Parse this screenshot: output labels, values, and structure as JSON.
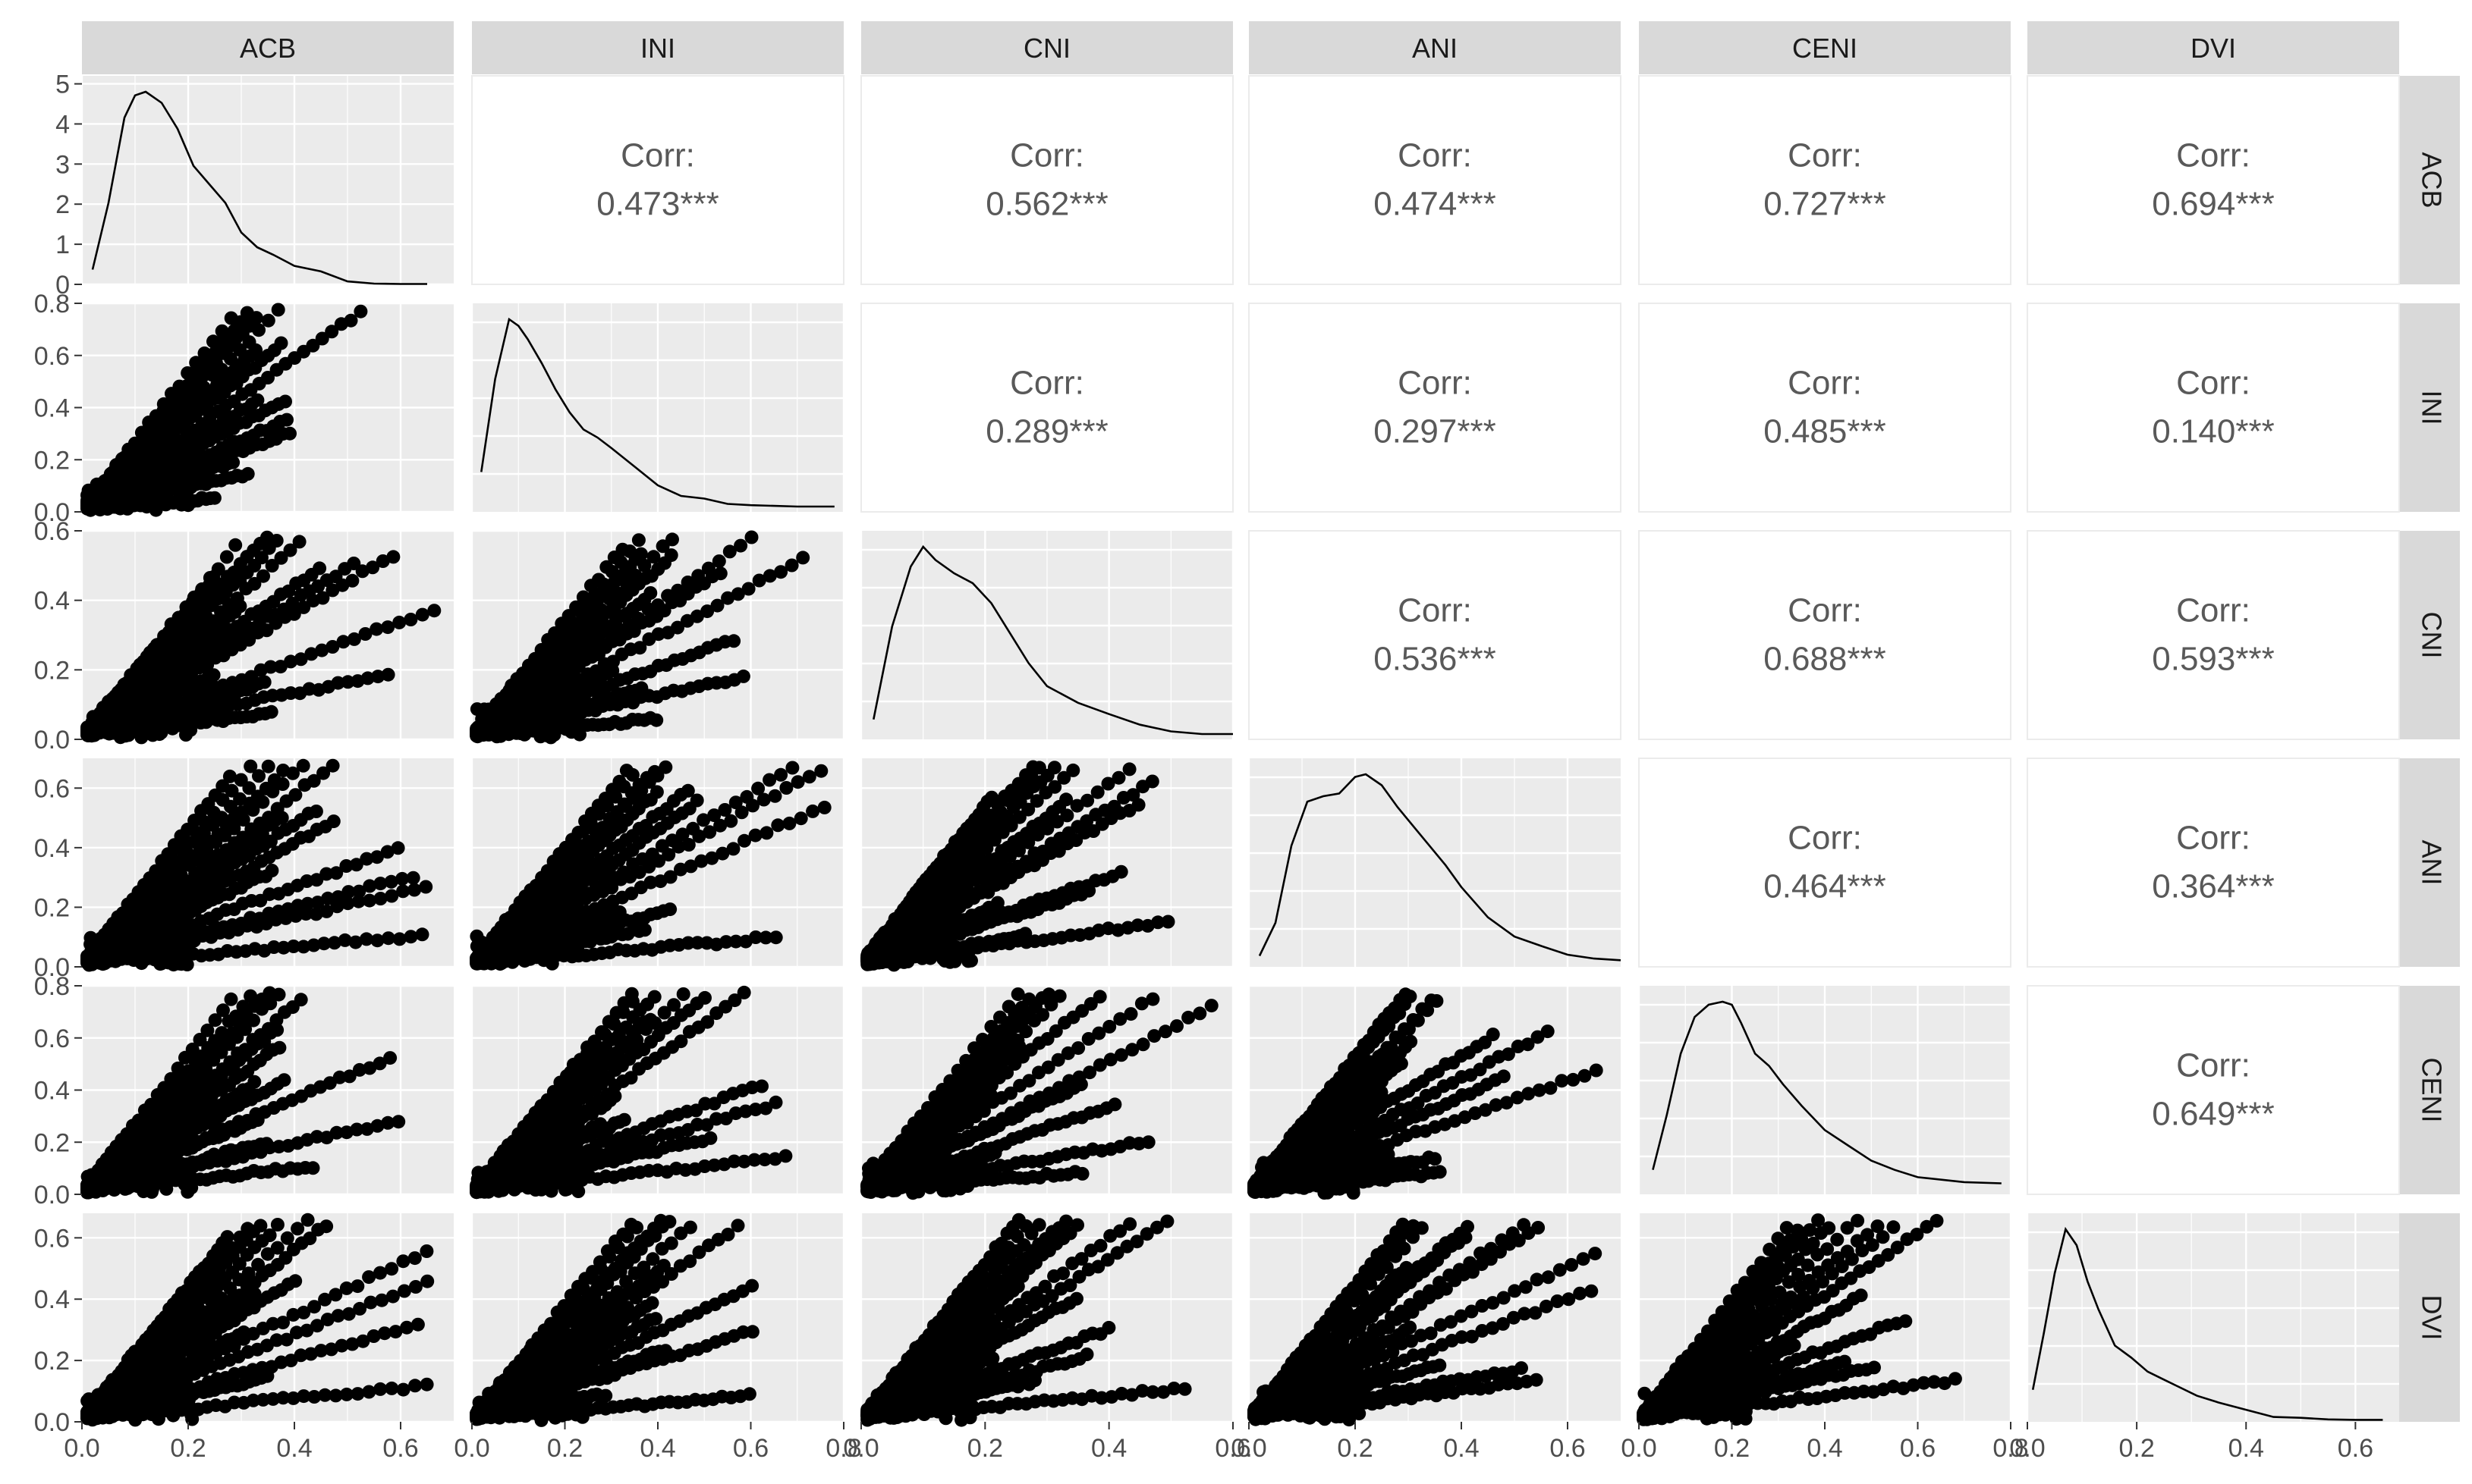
{
  "chart_data": {
    "type": "scatter-matrix",
    "variables": [
      "ACB",
      "INI",
      "CNI",
      "ANI",
      "CENI",
      "DVI"
    ],
    "correlation_label": "Corr:",
    "correlations": [
      {
        "row": "INI",
        "col": "ACB",
        "value": "0.473***"
      },
      {
        "row": "CNI",
        "col": "ACB",
        "value": "0.562***"
      },
      {
        "row": "ANI",
        "col": "ACB",
        "value": "0.474***"
      },
      {
        "row": "CENI",
        "col": "ACB",
        "value": "0.727***"
      },
      {
        "row": "DVI",
        "col": "ACB",
        "value": "0.694***"
      },
      {
        "row": "CNI",
        "col": "INI",
        "value": "0.289***"
      },
      {
        "row": "ANI",
        "col": "INI",
        "value": "0.297***"
      },
      {
        "row": "CENI",
        "col": "INI",
        "value": "0.485***"
      },
      {
        "row": "DVI",
        "col": "INI",
        "value": "0.140***"
      },
      {
        "row": "ANI",
        "col": "CNI",
        "value": "0.536***"
      },
      {
        "row": "CENI",
        "col": "CNI",
        "value": "0.688***"
      },
      {
        "row": "DVI",
        "col": "CNI",
        "value": "0.593***"
      },
      {
        "row": "CENI",
        "col": "ANI",
        "value": "0.464***"
      },
      {
        "row": "DVI",
        "col": "ANI",
        "value": "0.364***"
      },
      {
        "row": "DVI",
        "col": "CENI",
        "value": "0.649***"
      }
    ],
    "x_axes": [
      {
        "var": "ACB",
        "range": [
          0,
          0.7
        ],
        "ticks": [
          "0.0",
          "0.2",
          "0.4",
          "0.6"
        ]
      },
      {
        "var": "INI",
        "range": [
          0,
          0.8
        ],
        "ticks": [
          "0.0",
          "0.2",
          "0.4",
          "0.6",
          "0.8"
        ]
      },
      {
        "var": "CNI",
        "range": [
          0,
          0.6
        ],
        "ticks": [
          "0.0",
          "0.2",
          "0.4",
          "0.6"
        ]
      },
      {
        "var": "ANI",
        "range": [
          0,
          0.7
        ],
        "ticks": [
          "0.0",
          "0.2",
          "0.4",
          "0.6"
        ]
      },
      {
        "var": "CENI",
        "range": [
          0,
          0.8
        ],
        "ticks": [
          "0.0",
          "0.2",
          "0.4",
          "0.6",
          "0.8"
        ]
      },
      {
        "var": "DVI",
        "range": [
          0,
          0.68
        ],
        "ticks": [
          "0.0",
          "0.2",
          "0.4",
          "0.6"
        ]
      }
    ],
    "y_axes": [
      {
        "var": "ACB",
        "range": [
          0,
          5.2
        ],
        "ticks": [
          "0",
          "1",
          "2",
          "3",
          "4",
          "5"
        ]
      },
      {
        "var": "INI",
        "range": [
          0,
          0.8
        ],
        "ticks": [
          "0.0",
          "0.2",
          "0.4",
          "0.6",
          "0.8"
        ]
      },
      {
        "var": "CNI",
        "range": [
          0,
          0.6
        ],
        "ticks": [
          "0.0",
          "0.2",
          "0.4",
          "0.6"
        ]
      },
      {
        "var": "ANI",
        "range": [
          0,
          0.7
        ],
        "ticks": [
          "0.0",
          "0.2",
          "0.4",
          "0.6"
        ]
      },
      {
        "var": "CENI",
        "range": [
          0,
          0.8
        ],
        "ticks": [
          "0.0",
          "0.2",
          "0.4",
          "0.6",
          "0.8"
        ]
      },
      {
        "var": "DVI",
        "range": [
          0,
          0.68
        ],
        "ticks": [
          "0.0",
          "0.2",
          "0.4",
          "0.6"
        ]
      }
    ],
    "density_curves": [
      {
        "var": "ACB",
        "x": [
          0.02,
          0.05,
          0.08,
          0.1,
          0.12,
          0.15,
          0.18,
          0.21,
          0.24,
          0.27,
          0.3,
          0.33,
          0.36,
          0.4,
          0.45,
          0.5,
          0.55,
          0.6,
          0.65
        ],
        "y": [
          0.4,
          2.2,
          4.5,
          5.1,
          5.2,
          4.9,
          4.2,
          3.2,
          2.7,
          2.2,
          1.4,
          1.0,
          0.8,
          0.5,
          0.35,
          0.08,
          0.02,
          0.01,
          0.01
        ]
      },
      {
        "var": "INI",
        "x": [
          0.02,
          0.05,
          0.08,
          0.1,
          0.12,
          0.15,
          0.18,
          0.21,
          0.24,
          0.27,
          0.3,
          0.35,
          0.4,
          0.45,
          0.5,
          0.55,
          0.6,
          0.7,
          0.78
        ],
        "y": [
          0.3,
          1.0,
          1.45,
          1.4,
          1.3,
          1.12,
          0.92,
          0.75,
          0.62,
          0.56,
          0.48,
          0.34,
          0.2,
          0.12,
          0.1,
          0.06,
          0.05,
          0.04,
          0.04
        ]
      },
      {
        "var": "CNI",
        "x": [
          0.02,
          0.05,
          0.08,
          0.1,
          0.12,
          0.15,
          0.18,
          0.21,
          0.24,
          0.27,
          0.3,
          0.35,
          0.4,
          0.45,
          0.5,
          0.55,
          0.6
        ],
        "y": [
          0.3,
          1.7,
          2.6,
          2.9,
          2.7,
          2.5,
          2.35,
          2.05,
          1.6,
          1.15,
          0.8,
          0.55,
          0.38,
          0.22,
          0.12,
          0.08,
          0.08
        ]
      },
      {
        "var": "ANI",
        "x": [
          0.02,
          0.05,
          0.08,
          0.11,
          0.14,
          0.17,
          0.2,
          0.22,
          0.25,
          0.28,
          0.31,
          0.34,
          0.37,
          0.4,
          0.45,
          0.5,
          0.55,
          0.6,
          0.65,
          0.7
        ],
        "y": [
          0.2,
          0.8,
          2.2,
          3.0,
          3.1,
          3.15,
          3.45,
          3.5,
          3.3,
          2.9,
          2.55,
          2.2,
          1.85,
          1.45,
          0.9,
          0.55,
          0.38,
          0.22,
          0.15,
          0.12
        ]
      },
      {
        "var": "CENI",
        "x": [
          0.03,
          0.06,
          0.09,
          0.12,
          0.15,
          0.18,
          0.2,
          0.22,
          0.25,
          0.28,
          0.31,
          0.35,
          0.4,
          0.45,
          0.5,
          0.55,
          0.6,
          0.7,
          0.78
        ],
        "y": [
          0.4,
          1.3,
          2.3,
          2.9,
          3.1,
          3.15,
          3.1,
          2.8,
          2.3,
          2.1,
          1.8,
          1.45,
          1.05,
          0.8,
          0.55,
          0.4,
          0.28,
          0.2,
          0.18
        ]
      },
      {
        "var": "DVI",
        "x": [
          0.01,
          0.03,
          0.05,
          0.07,
          0.09,
          0.11,
          0.13,
          0.16,
          0.19,
          0.22,
          0.25,
          0.28,
          0.31,
          0.35,
          0.4,
          0.45,
          0.5,
          0.55,
          0.6,
          0.65
        ],
        "y": [
          0.8,
          2.2,
          3.7,
          4.8,
          4.4,
          3.5,
          2.8,
          1.9,
          1.6,
          1.25,
          1.05,
          0.85,
          0.65,
          0.48,
          0.3,
          0.12,
          0.1,
          0.06,
          0.05,
          0.05
        ]
      }
    ]
  }
}
